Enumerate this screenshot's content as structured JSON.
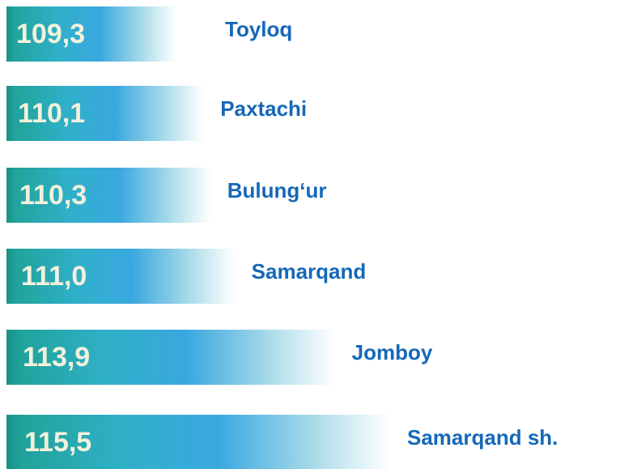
{
  "chart_data": {
    "type": "bar",
    "orientation": "horizontal",
    "categories": [
      "Toyloq",
      "Paxtachi",
      "Bulung‘ur",
      "Samarqand",
      "Jomboy",
      "Samarqand sh."
    ],
    "values": [
      109.3,
      110.1,
      110.3,
      111.0,
      113.9,
      115.5
    ],
    "value_labels": [
      "109,3",
      "110,1",
      "110,3",
      "111,0",
      "113,9",
      "115,5"
    ],
    "color": "#3aa8e0"
  }
}
